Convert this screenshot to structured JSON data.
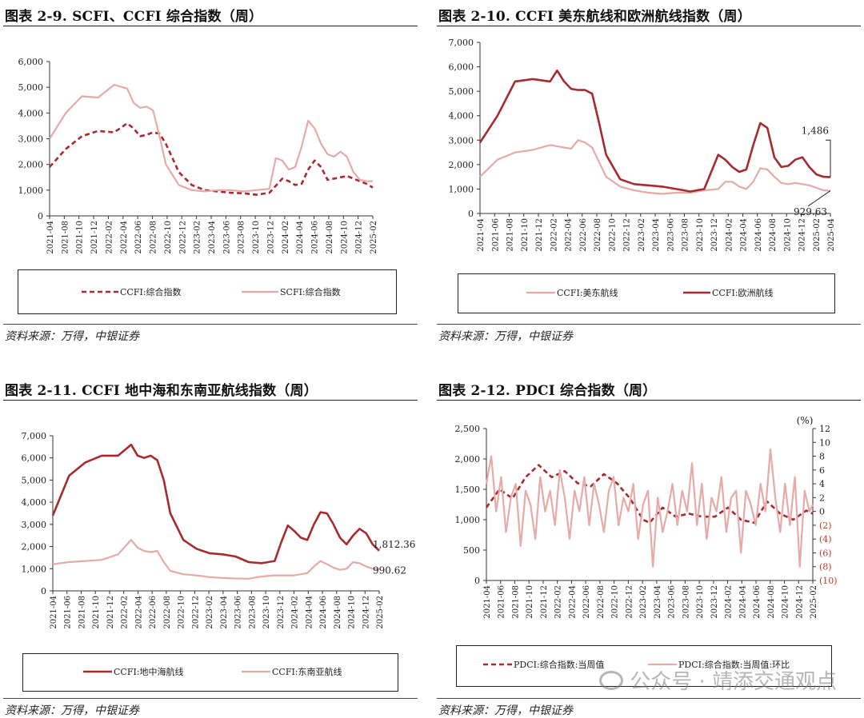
{
  "colors": {
    "dark": "#a82a2e",
    "light": "#e6aaa8",
    "axis": "#333333"
  },
  "sources": [
    "资料来源：万得，中银证券",
    "资料来源：万得，中银证券",
    "资料来源：万得，中银证券",
    "资料来源：万得，中银证券"
  ],
  "watermark": {
    "icon": "wechat-icon",
    "text": "公众号 · 靖添交通观点"
  },
  "chart_data": [
    {
      "id": "c1",
      "type": "line",
      "title": "图表 2-9. SCFI、CCFI 综合指数（周）",
      "ylim": [
        0,
        6000
      ],
      "yticks": [
        "0",
        "1,000",
        "2,000",
        "3,000",
        "4,000",
        "5,000",
        "6,000"
      ],
      "x_start": "2021-04",
      "x_end": "2025-04",
      "xticks": [
        "2021-04",
        "2021-08",
        "2021-10",
        "2021-12",
        "2022-02",
        "2022-04",
        "2022-06",
        "2022-08",
        "2022-10",
        "2022-12",
        "2023-02",
        "2023-04",
        "2023-06",
        "2023-08",
        "2023-10",
        "2023-12",
        "2024-02",
        "2024-04",
        "2024-06",
        "2024-08",
        "2024-10",
        "2024-12",
        "2025-02"
      ],
      "legend": [
        "CCFI:综合指数",
        "SCFI:综合指数"
      ],
      "series": [
        {
          "name": "CCFI:综合指数",
          "style": "dashed-dark",
          "t": [
            0,
            0.05,
            0.1,
            0.15,
            0.2,
            0.24,
            0.26,
            0.28,
            0.3,
            0.32,
            0.34,
            0.36,
            0.4,
            0.44,
            0.48,
            0.52,
            0.56,
            0.6,
            0.64,
            0.68,
            0.72,
            0.74,
            0.76,
            0.78,
            0.8,
            0.82,
            0.84,
            0.86,
            0.88,
            0.9,
            0.92,
            0.94,
            0.96,
            0.98,
            1
          ],
          "v": [
            1900,
            2600,
            3100,
            3300,
            3250,
            3600,
            3400,
            3100,
            3150,
            3250,
            3200,
            2800,
            1700,
            1200,
            1000,
            950,
            900,
            880,
            820,
            900,
            1450,
            1350,
            1200,
            1250,
            1800,
            2150,
            1900,
            1400,
            1450,
            1500,
            1550,
            1450,
            1350,
            1250,
            1100
          ]
        },
        {
          "name": "SCFI:综合指数",
          "style": "solid-light",
          "t": [
            0,
            0.05,
            0.1,
            0.15,
            0.2,
            0.24,
            0.26,
            0.28,
            0.3,
            0.32,
            0.34,
            0.36,
            0.4,
            0.44,
            0.48,
            0.52,
            0.56,
            0.6,
            0.64,
            0.68,
            0.7,
            0.72,
            0.74,
            0.76,
            0.78,
            0.8,
            0.82,
            0.84,
            0.86,
            0.88,
            0.9,
            0.92,
            0.94,
            0.96,
            0.98,
            1
          ],
          "v": [
            3000,
            4000,
            4650,
            4600,
            5100,
            4950,
            4400,
            4200,
            4250,
            4100,
            3100,
            2000,
            1200,
            1000,
            950,
            1000,
            1000,
            950,
            1000,
            1050,
            2250,
            2150,
            1800,
            1900,
            2700,
            3700,
            3400,
            2800,
            2400,
            2300,
            2500,
            2300,
            1700,
            1400,
            1350,
            1350
          ]
        }
      ]
    },
    {
      "id": "c2",
      "type": "line",
      "title": "图表 2-10. CCFI 美东航线和欧洲航线指数（周）",
      "ylim": [
        0,
        7000
      ],
      "yticks": [
        "0",
        "1,000",
        "2,000",
        "3,000",
        "4,000",
        "5,000",
        "6,000",
        "7,000"
      ],
      "x_start": "2021-04",
      "x_end": "2025-04",
      "xticks": [
        "2021-04",
        "2021-06",
        "2021-08",
        "2021-10",
        "2021-12",
        "2022-02",
        "2022-04",
        "2022-06",
        "2022-08",
        "2022-10",
        "2022-12",
        "2023-02",
        "2023-04",
        "2023-06",
        "2023-08",
        "2023-10",
        "2023-12",
        "2024-02",
        "2024-04",
        "2024-06",
        "2024-08",
        "2024-10",
        "2024-12",
        "2025-02",
        "2025-04"
      ],
      "legend": [
        "CCFI:美东航线",
        "CCFI:欧洲航线"
      ],
      "annotations": [
        "1,486",
        "929.63"
      ],
      "series": [
        {
          "name": "CCFI:美东航线",
          "style": "solid-light",
          "t": [
            0,
            0.05,
            0.1,
            0.15,
            0.2,
            0.24,
            0.26,
            0.28,
            0.3,
            0.32,
            0.34,
            0.36,
            0.4,
            0.44,
            0.48,
            0.52,
            0.56,
            0.6,
            0.64,
            0.68,
            0.7,
            0.72,
            0.74,
            0.76,
            0.78,
            0.8,
            0.82,
            0.84,
            0.86,
            0.88,
            0.9,
            0.92,
            0.94,
            0.96,
            0.98,
            1
          ],
          "v": [
            1500,
            2200,
            2500,
            2600,
            2800,
            2700,
            2650,
            3000,
            2900,
            2700,
            2100,
            1500,
            1100,
            950,
            850,
            800,
            850,
            850,
            950,
            1000,
            1300,
            1300,
            1100,
            1000,
            1300,
            1850,
            1800,
            1500,
            1250,
            1200,
            1250,
            1200,
            1150,
            1050,
            950,
            929.63
          ]
        },
        {
          "name": "CCFI:欧洲航线",
          "style": "solid-dark",
          "t": [
            0,
            0.05,
            0.1,
            0.15,
            0.2,
            0.22,
            0.24,
            0.26,
            0.28,
            0.3,
            0.32,
            0.34,
            0.36,
            0.4,
            0.44,
            0.48,
            0.52,
            0.56,
            0.6,
            0.64,
            0.68,
            0.7,
            0.72,
            0.74,
            0.76,
            0.78,
            0.8,
            0.82,
            0.84,
            0.86,
            0.88,
            0.9,
            0.92,
            0.94,
            0.96,
            0.98,
            1
          ],
          "v": [
            2900,
            4000,
            5400,
            5500,
            5400,
            5850,
            5400,
            5100,
            5050,
            5050,
            4900,
            3700,
            2400,
            1400,
            1200,
            1150,
            1100,
            1000,
            900,
            1000,
            2400,
            2200,
            1900,
            1700,
            1800,
            2800,
            3700,
            3500,
            2300,
            1900,
            1950,
            2200,
            2300,
            1900,
            1600,
            1500,
            1486
          ]
        }
      ]
    },
    {
      "id": "c3",
      "type": "line",
      "title": "图表 2-11. CCFI 地中海和东南亚航线指数（周）",
      "ylim": [
        0,
        7000
      ],
      "yticks": [
        "0",
        "1,000",
        "2,000",
        "3,000",
        "4,000",
        "5,000",
        "6,000",
        "7,000"
      ],
      "x_start": "2021-04",
      "x_end": "2025-04",
      "xticks": [
        "2021-04",
        "2021-06",
        "2021-08",
        "2021-10",
        "2021-12",
        "2022-02",
        "2022-04",
        "2022-06",
        "2022-08",
        "2022-10",
        "2022-12",
        "2023-02",
        "2023-04",
        "2023-06",
        "2023-08",
        "2023-10",
        "2023-12",
        "2024-02",
        "2024-04",
        "2024-06",
        "2024-08",
        "2024-10",
        "2024-12",
        "2025-02"
      ],
      "legend": [
        "CCFI:地中海航线",
        "CCFI:东南亚航线"
      ],
      "annotations": [
        "1,812.36",
        "990.62"
      ],
      "series": [
        {
          "name": "CCFI:地中海航线",
          "style": "solid-dark",
          "t": [
            0,
            0.05,
            0.1,
            0.15,
            0.2,
            0.24,
            0.26,
            0.28,
            0.3,
            0.32,
            0.34,
            0.36,
            0.4,
            0.44,
            0.48,
            0.52,
            0.56,
            0.6,
            0.64,
            0.66,
            0.68,
            0.7,
            0.72,
            0.74,
            0.76,
            0.78,
            0.8,
            0.82,
            0.84,
            0.86,
            0.88,
            0.9,
            0.92,
            0.94,
            0.96,
            0.98,
            1
          ],
          "v": [
            3400,
            5200,
            5800,
            6100,
            6100,
            6600,
            6100,
            6000,
            6100,
            5900,
            5000,
            3500,
            2300,
            1900,
            1700,
            1650,
            1550,
            1300,
            1250,
            1300,
            1350,
            2200,
            2950,
            2700,
            2400,
            2300,
            3000,
            3550,
            3500,
            3000,
            2400,
            2100,
            2500,
            2800,
            2600,
            2100,
            1812.36
          ]
        },
        {
          "name": "CCFI:东南亚航线",
          "style": "solid-light",
          "t": [
            0,
            0.05,
            0.1,
            0.15,
            0.2,
            0.24,
            0.26,
            0.28,
            0.3,
            0.32,
            0.34,
            0.36,
            0.4,
            0.44,
            0.48,
            0.52,
            0.56,
            0.6,
            0.64,
            0.68,
            0.7,
            0.72,
            0.74,
            0.76,
            0.78,
            0.8,
            0.82,
            0.84,
            0.86,
            0.88,
            0.9,
            0.92,
            0.94,
            0.96,
            0.98,
            1
          ],
          "v": [
            1200,
            1300,
            1350,
            1400,
            1650,
            2300,
            1950,
            1800,
            1750,
            1800,
            1300,
            900,
            750,
            700,
            620,
            580,
            560,
            550,
            650,
            700,
            700,
            700,
            700,
            750,
            800,
            1100,
            1350,
            1200,
            1050,
            950,
            1000,
            1300,
            1250,
            1100,
            1000,
            990,
            990.62
          ]
        }
      ]
    },
    {
      "id": "c4",
      "type": "line",
      "title": "图表 2-12. PDCI 综合指数（周）",
      "ylim": [
        0,
        2500
      ],
      "y2lim": [
        -10,
        12
      ],
      "y2unit": "(%)",
      "yticks": [
        "0",
        "500",
        "1,000",
        "1,500",
        "2,000",
        "2,500"
      ],
      "y2ticks": [
        "(10)",
        "(8)",
        "(6)",
        "(4)",
        "(2)",
        "0",
        "2",
        "4",
        "6",
        "8",
        "10",
        "12"
      ],
      "x_start": "2021-04",
      "x_end": "2025-04",
      "xticks": [
        "2021-04",
        "2021-06",
        "2021-08",
        "2021-10",
        "2021-12",
        "2022-02",
        "2022-04",
        "2022-06",
        "2022-08",
        "2022-10",
        "2022-12",
        "2023-02",
        "2023-04",
        "2023-06",
        "2023-08",
        "2023-10",
        "2023-12",
        "2024-02",
        "2024-04",
        "2024-06",
        "2024-08",
        "2024-10",
        "2024-12",
        "2025-02"
      ],
      "legend": [
        "PDCI:综合指数:当周值",
        "PDCI:综合指数:当周值:环比"
      ],
      "series": [
        {
          "name": "PDCI:综合指数:当周值",
          "style": "dashed-dark",
          "axis": "left",
          "t": [
            0,
            0.04,
            0.08,
            0.12,
            0.16,
            0.2,
            0.24,
            0.28,
            0.32,
            0.36,
            0.4,
            0.44,
            0.48,
            0.5,
            0.54,
            0.58,
            0.62,
            0.66,
            0.7,
            0.74,
            0.78,
            0.82,
            0.86,
            0.9,
            0.94,
            0.98,
            1
          ],
          "v": [
            1200,
            1500,
            1350,
            1700,
            1900,
            1700,
            1800,
            1600,
            1550,
            1750,
            1600,
            1350,
            1000,
            950,
            1200,
            1050,
            1100,
            1050,
            1050,
            1200,
            1000,
            950,
            1300,
            1100,
            1000,
            1150,
            1100
          ]
        },
        {
          "name": "PDCI:综合指数:当周值:环比",
          "style": "solid-light",
          "axis": "right",
          "t": [
            0,
            0.015,
            0.03,
            0.045,
            0.06,
            0.075,
            0.09,
            0.105,
            0.12,
            0.135,
            0.15,
            0.165,
            0.18,
            0.195,
            0.21,
            0.225,
            0.24,
            0.255,
            0.27,
            0.285,
            0.3,
            0.315,
            0.33,
            0.345,
            0.36,
            0.375,
            0.39,
            0.405,
            0.42,
            0.435,
            0.45,
            0.465,
            0.48,
            0.495,
            0.51,
            0.525,
            0.54,
            0.555,
            0.57,
            0.585,
            0.6,
            0.615,
            0.63,
            0.645,
            0.66,
            0.675,
            0.69,
            0.705,
            0.72,
            0.735,
            0.75,
            0.765,
            0.78,
            0.795,
            0.81,
            0.825,
            0.84,
            0.855,
            0.87,
            0.885,
            0.9,
            0.915,
            0.93,
            0.945,
            0.96,
            0.975,
            0.99,
            1
          ],
          "v": [
            4,
            8,
            0,
            5,
            -3,
            2,
            4,
            -5,
            3,
            1,
            -4,
            5,
            0,
            3,
            -2,
            6,
            2,
            -4,
            3,
            0,
            5,
            -2,
            4,
            1,
            -3,
            3,
            5,
            -2,
            2,
            0,
            4,
            -4,
            1,
            3,
            -8,
            2,
            -3,
            0,
            4,
            -2,
            3,
            0,
            7,
            -2,
            4,
            -4,
            2,
            0,
            5,
            -3,
            2,
            3,
            -6,
            3,
            1,
            -2,
            4,
            0,
            9,
            2,
            -3,
            4,
            -2,
            5,
            -8,
            3,
            0,
            1
          ]
        }
      ]
    }
  ]
}
